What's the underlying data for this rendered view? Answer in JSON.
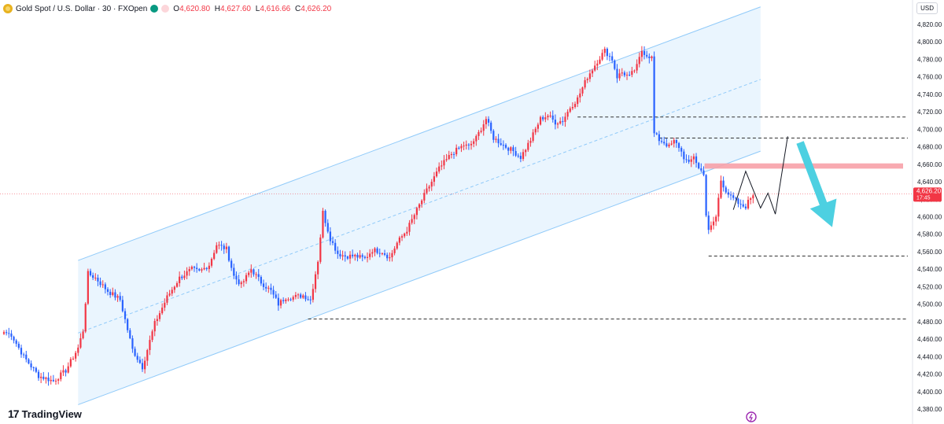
{
  "header": {
    "symbol_title": "Gold Spot / U.S. Dollar · 30 · FXOpen",
    "ohlc": [
      {
        "key": "O",
        "value": "4,620.80"
      },
      {
        "key": "H",
        "value": "4,627.60"
      },
      {
        "key": "L",
        "value": "4,616.66"
      },
      {
        "key": "C",
        "value": "4,626.20"
      }
    ]
  },
  "currency_label": "USD",
  "branding": "TradingView",
  "colors": {
    "up": "#f23645",
    "down": "#2962ff",
    "channel_fill": "#e3f2fd",
    "channel_line": "#90caf9",
    "zone": "#f7a1a8",
    "arrow": "#4dd0e1",
    "price_tag": "#f23645"
  },
  "chart_data": {
    "type": "candlestick",
    "y_range": [
      4370,
      4830
    ],
    "price_ticks": [
      "4,820.00",
      "4,800.00",
      "4,780.00",
      "4,760.00",
      "4,740.00",
      "4,720.00",
      "4,700.00",
      "4,680.00",
      "4,660.00",
      "4,640.00",
      "4,620.00",
      "4,600.00",
      "4,580.00",
      "4,560.00",
      "4,540.00",
      "4,520.00",
      "4,500.00",
      "4,480.00",
      "4,460.00",
      "4,440.00",
      "4,420.00",
      "4,400.00",
      "4,380.00"
    ],
    "last_price": {
      "value": 4626.2,
      "label": "4,626.20",
      "countdown": "17:45"
    },
    "keypoints": [
      [
        0,
        4468
      ],
      [
        3,
        4465
      ],
      [
        8,
        4440
      ],
      [
        14,
        4418
      ],
      [
        20,
        4412
      ],
      [
        25,
        4424
      ],
      [
        30,
        4450
      ],
      [
        32,
        4470
      ],
      [
        34,
        4535
      ],
      [
        37,
        4530
      ],
      [
        42,
        4515
      ],
      [
        47,
        4505
      ],
      [
        52,
        4448
      ],
      [
        56,
        4428
      ],
      [
        61,
        4478
      ],
      [
        66,
        4508
      ],
      [
        71,
        4530
      ],
      [
        76,
        4540
      ],
      [
        79,
        4537
      ],
      [
        83,
        4545
      ],
      [
        86,
        4568
      ],
      [
        90,
        4563
      ],
      [
        93,
        4532
      ],
      [
        96,
        4522
      ],
      [
        100,
        4540
      ],
      [
        104,
        4525
      ],
      [
        108,
        4515
      ],
      [
        111,
        4500
      ],
      [
        114,
        4508
      ],
      [
        117,
        4508
      ],
      [
        121,
        4510
      ],
      [
        124,
        4505
      ],
      [
        127,
        4550
      ],
      [
        129,
        4605
      ],
      [
        132,
        4575
      ],
      [
        135,
        4558
      ],
      [
        138,
        4555
      ],
      [
        142,
        4555
      ],
      [
        146,
        4552
      ],
      [
        149,
        4562
      ],
      [
        153,
        4560
      ],
      [
        156,
        4553
      ],
      [
        159,
        4570
      ],
      [
        163,
        4585
      ],
      [
        166,
        4602
      ],
      [
        171,
        4630
      ],
      [
        176,
        4655
      ],
      [
        181,
        4672
      ],
      [
        186,
        4682
      ],
      [
        188,
        4680
      ],
      [
        191,
        4690
      ],
      [
        195,
        4712
      ],
      [
        198,
        4690
      ],
      [
        203,
        4680
      ],
      [
        206,
        4675
      ],
      [
        209,
        4668
      ],
      [
        213,
        4688
      ],
      [
        217,
        4712
      ],
      [
        220,
        4716
      ],
      [
        223,
        4708
      ],
      [
        226,
        4710
      ],
      [
        229,
        4725
      ],
      [
        232,
        4735
      ],
      [
        236,
        4760
      ],
      [
        240,
        4778
      ],
      [
        243,
        4790
      ],
      [
        246,
        4780
      ],
      [
        248,
        4760
      ],
      [
        250,
        4765
      ],
      [
        253,
        4760
      ],
      [
        256,
        4772
      ],
      [
        258,
        4790
      ],
      [
        260,
        4785
      ],
      [
        262,
        4782
      ],
      [
        263,
        4695
      ],
      [
        265,
        4688
      ],
      [
        267,
        4685
      ],
      [
        269,
        4680
      ],
      [
        271,
        4686
      ],
      [
        273,
        4680
      ],
      [
        275,
        4668
      ],
      [
        277,
        4660
      ],
      [
        279,
        4670
      ],
      [
        281,
        4655
      ],
      [
        283,
        4650
      ],
      [
        284,
        4602
      ],
      [
        285,
        4583
      ],
      [
        288,
        4600
      ],
      [
        290,
        4642
      ],
      [
        292,
        4630
      ],
      [
        294,
        4622
      ],
      [
        296,
        4618
      ],
      [
        298,
        4612
      ],
      [
        300,
        4612
      ],
      [
        302,
        4622
      ],
      [
        303,
        4626
      ]
    ],
    "channel": {
      "upper": [
        [
          30,
          4550
        ],
        [
          306,
          4840
        ]
      ],
      "lower": [
        [
          30,
          4385
        ],
        [
          306,
          4675
        ]
      ],
      "mid": [
        [
          30,
          4467
        ],
        [
          306,
          4757
        ]
      ]
    },
    "resistance_zone": [
      4655,
      4661
    ],
    "levels": [
      {
        "price": 4714,
        "from": 232
      },
      {
        "price": 4690,
        "from": 265
      },
      {
        "price": 4555,
        "from": 285
      },
      {
        "price": 4483,
        "from": 123
      }
    ],
    "projection_path": [
      [
        295,
        4608
      ],
      [
        300,
        4652
      ],
      [
        306,
        4610
      ],
      [
        309,
        4627
      ],
      [
        312,
        4603
      ],
      [
        317,
        4692
      ]
    ],
    "forecast_arrow": {
      "from": [
        322,
        4685
      ],
      "to": [
        335,
        4588
      ]
    }
  }
}
